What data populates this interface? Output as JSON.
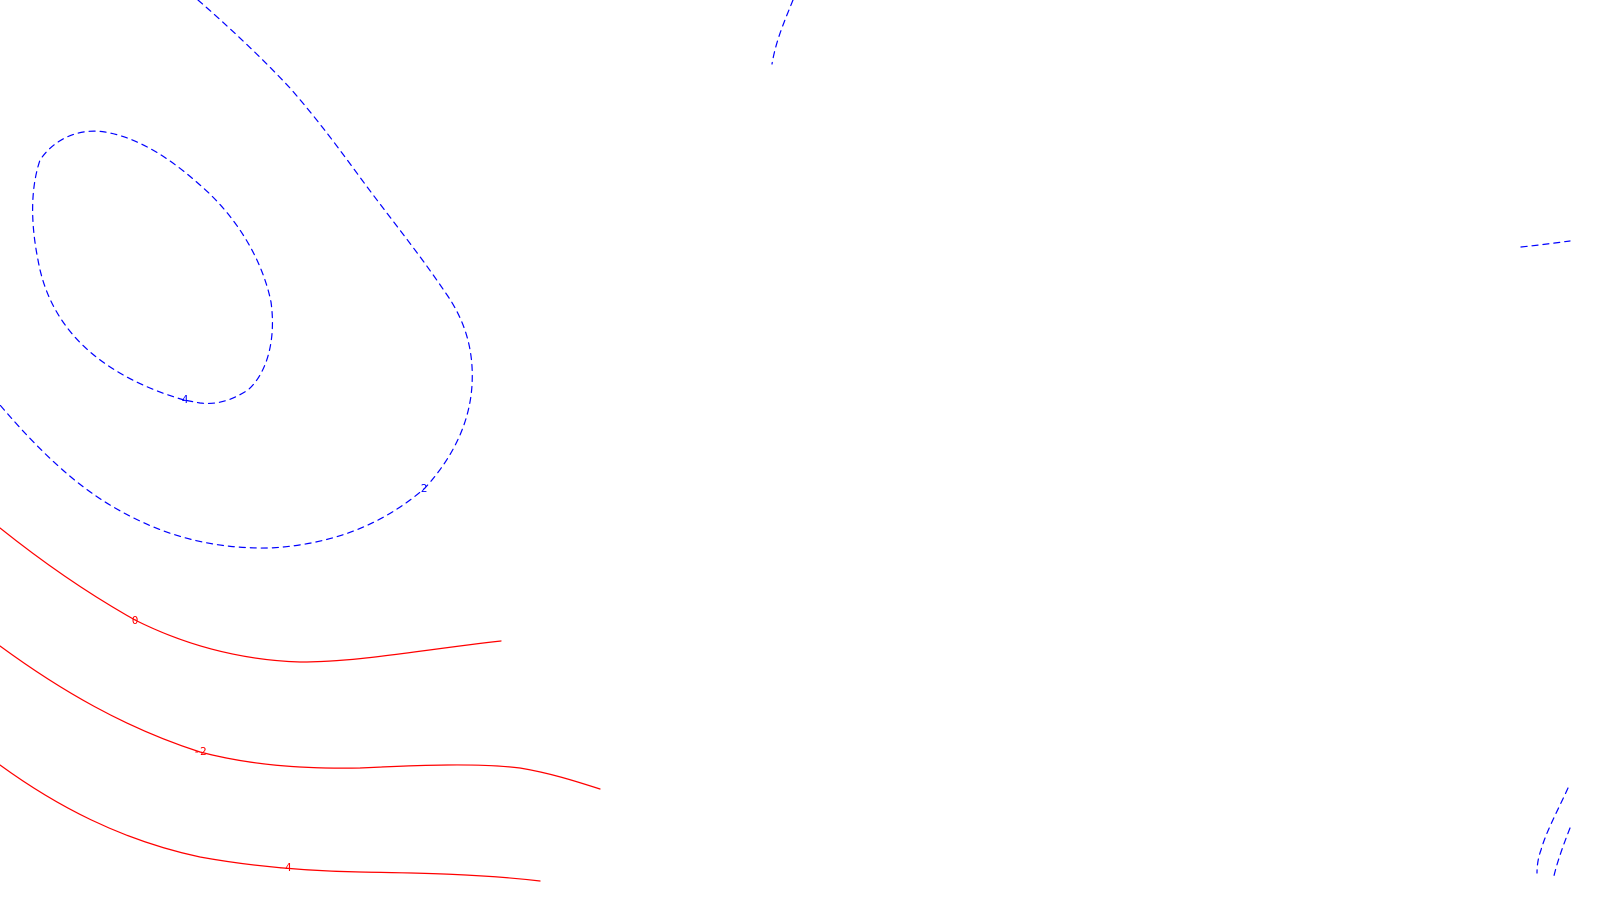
{
  "contour_map": {
    "colors": {
      "positive": "#0000ff",
      "negative": "#ff0000",
      "background": "#ffffff"
    },
    "line_styles": {
      "positive": "dashed",
      "negative": "solid"
    },
    "contours": [
      {
        "level": "4",
        "sign": "positive",
        "label": "4"
      },
      {
        "level": "2",
        "sign": "positive",
        "label": "2"
      },
      {
        "level": "2",
        "sign": "positive",
        "label": ""
      },
      {
        "level": "2",
        "sign": "positive",
        "label": ""
      },
      {
        "level": "2",
        "sign": "positive",
        "label": ""
      },
      {
        "level": "2",
        "sign": "positive",
        "label": ""
      },
      {
        "level": "0",
        "sign": "negative",
        "label": "0"
      },
      {
        "level": "-2",
        "sign": "negative",
        "label": "-2"
      },
      {
        "level": "-4",
        "sign": "negative",
        "label": "-4"
      }
    ]
  }
}
